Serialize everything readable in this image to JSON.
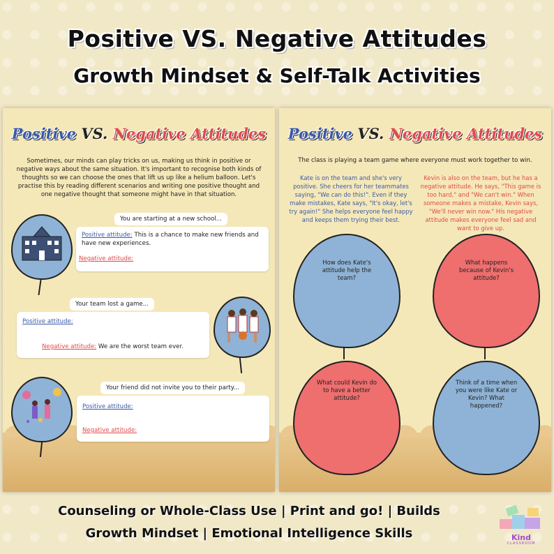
{
  "header": {
    "title": "Positive VS. Negative Attitudes",
    "subtitle": "Growth Mindset & Self-Talk Activities"
  },
  "left_page": {
    "title_pos": "Positive ",
    "title_vs": "VS. ",
    "title_neg": "Negative Attitudes",
    "intro": "Sometimes, our minds can play tricks on us, making us think in positive or negative ways about the same situation. It's important to recognise both kinds of thoughts so we can choose the ones that lift us up like a helium balloon. Let's practise this by reading different scenarios and writing one positive thought and one negative thought that someone might have in that situation.",
    "scenarios": [
      {
        "prompt": "You are starting at a new school...",
        "positive_label": "Positive attitude:",
        "positive_text": " This is a chance to make new friends and have new experiences.",
        "negative_label": "Negative attitude:",
        "negative_text": ""
      },
      {
        "prompt": "Your team lost a game...",
        "positive_label": "Positive attitude:",
        "positive_text": "",
        "negative_label": "Negative attitude:",
        "negative_text": " We are the worst team ever."
      },
      {
        "prompt": "Your friend did not invite you to their party...",
        "positive_label": "Positive attitude:",
        "positive_text": "",
        "negative_label": "Negative attitude:",
        "negative_text": ""
      }
    ]
  },
  "right_page": {
    "title_pos": "Positive ",
    "title_vs": "VS. ",
    "title_neg": "Negative Attitudes",
    "intro": "The class is playing a team game where everyone must work together to win.",
    "kate": "Kate is on the team and she's very positive. She cheers for her teammates saying, \"We can do this!\". Even if they make mistakes, Kate says, \"It's okay, let's try again!\" She helps everyone feel happy and keeps them trying their best.",
    "kevin": "Kevin is also on the team, but he has a negative attitude. He says, \"This game is too hard,\" and \"We can't win.\" When someone makes a mistake, Kevin says, \"We'll never win now.\" His negative attitude makes everyone feel sad and want to give up.",
    "questions": [
      "How does Kate's attitude help the team?",
      "What happens because of Kevin's attitude?",
      "What could Kevin do to have a better attitude?",
      "Think of a time when you were like Kate or Kevin? What happened?"
    ]
  },
  "footer": {
    "line1": "Counseling or Whole-Class Use | Print and go! | Builds",
    "line2": "Growth Mindset | Emotional Intelligence Skills"
  },
  "logo": {
    "name": "Kind",
    "sub": "CLASSROOM"
  },
  "colors": {
    "blue": "#8fb3d6",
    "red": "#ef6e6e",
    "positive_text": "#3b5aa6",
    "negative_text": "#e04a4a"
  }
}
